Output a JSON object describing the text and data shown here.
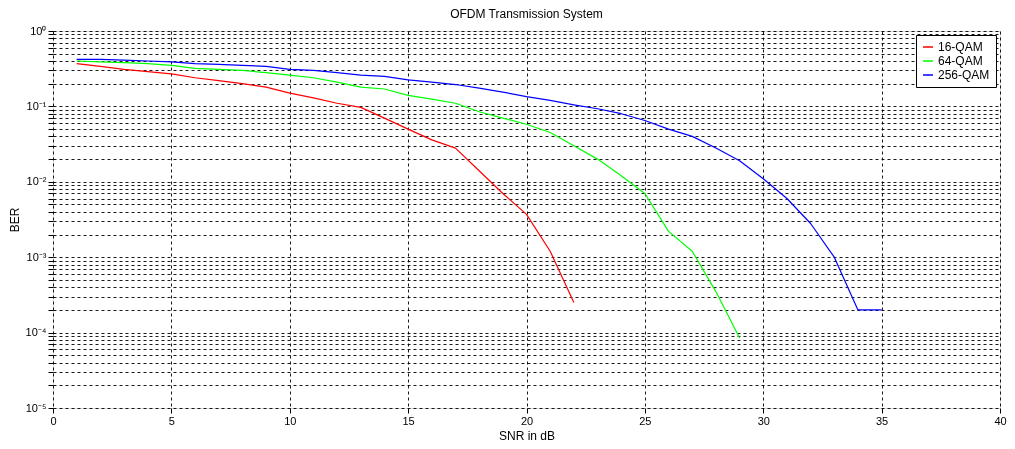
{
  "chart_data": {
    "type": "line",
    "title": "OFDM Transmission System",
    "xlabel": "SNR in dB",
    "ylabel": "BER",
    "log": "y",
    "grid": true,
    "legend": "top right",
    "marker": "none",
    "line_style": "solid",
    "xlim": [
      0,
      40
    ],
    "xticks": [
      0,
      5,
      10,
      15,
      20,
      25,
      30,
      35,
      40
    ],
    "ylim": [
      1e-05,
      1
    ],
    "yticks": [
      {
        "value": 1e-05,
        "label": "10⁻⁵"
      },
      {
        "value": 2e-05,
        "label": null
      },
      {
        "value": 3e-05,
        "label": null
      },
      {
        "value": 4e-05,
        "label": null
      },
      {
        "value": 5e-05,
        "label": null
      },
      {
        "value": 6e-05,
        "label": null
      },
      {
        "value": 7e-05,
        "label": null
      },
      {
        "value": 8e-05,
        "label": null
      },
      {
        "value": 9e-05,
        "label": null
      },
      {
        "value": 0.0001,
        "label": "10⁻⁴"
      },
      {
        "value": 0.0002,
        "label": null
      },
      {
        "value": 0.0003,
        "label": null
      },
      {
        "value": 0.0004,
        "label": null
      },
      {
        "value": 0.0005,
        "label": null
      },
      {
        "value": 0.0006,
        "label": null
      },
      {
        "value": 0.0007,
        "label": null
      },
      {
        "value": 0.0008,
        "label": null
      },
      {
        "value": 0.0009,
        "label": null
      },
      {
        "value": 0.001,
        "label": "10⁻³"
      },
      {
        "value": 0.002,
        "label": null
      },
      {
        "value": 0.003,
        "label": null
      },
      {
        "value": 0.004,
        "label": null
      },
      {
        "value": 0.005,
        "label": null
      },
      {
        "value": 0.006,
        "label": null
      },
      {
        "value": 0.007,
        "label": null
      },
      {
        "value": 0.008,
        "label": null
      },
      {
        "value": 0.009,
        "label": null
      },
      {
        "value": 0.01,
        "label": "10⁻²"
      },
      {
        "value": 0.02,
        "label": null
      },
      {
        "value": 0.03,
        "label": null
      },
      {
        "value": 0.04,
        "label": null
      },
      {
        "value": 0.05,
        "label": null
      },
      {
        "value": 0.06,
        "label": null
      },
      {
        "value": 0.07,
        "label": null
      },
      {
        "value": 0.08,
        "label": null
      },
      {
        "value": 0.09,
        "label": null
      },
      {
        "value": 0.1,
        "label": "10⁻¹"
      },
      {
        "value": 0.2,
        "label": null
      },
      {
        "value": 0.3,
        "label": null
      },
      {
        "value": 0.4,
        "label": null
      },
      {
        "value": 0.5,
        "label": null
      },
      {
        "value": 0.6,
        "label": null
      },
      {
        "value": 0.7,
        "label": null
      },
      {
        "value": 0.8,
        "label": null
      },
      {
        "value": 0.9,
        "label": null
      },
      {
        "value": 1,
        "label": "10⁰"
      }
    ],
    "series": [
      {
        "name": "16-QAM",
        "color": "#ff0000",
        "x": [
          1,
          2,
          3,
          4,
          5,
          6,
          7,
          8,
          9,
          10,
          11,
          12,
          13,
          14,
          15,
          16,
          17,
          18,
          19,
          20,
          21,
          22
        ],
        "values": [
          0.37,
          0.34,
          0.31,
          0.29,
          0.27,
          0.24,
          0.22,
          0.2,
          0.18,
          0.15,
          0.13,
          0.11,
          0.097,
          0.07,
          0.05,
          0.036,
          0.028,
          0.014,
          0.007,
          0.0037,
          0.0012,
          0.00025
        ]
      },
      {
        "name": "64-QAM",
        "color": "#00ff00",
        "x": [
          1,
          2,
          3,
          4,
          5,
          6,
          7,
          8,
          9,
          10,
          11,
          12,
          13,
          14,
          15,
          16,
          17,
          18,
          19,
          20,
          21,
          22,
          23,
          24,
          25,
          26,
          27,
          28,
          29
        ],
        "values": [
          0.4,
          0.39,
          0.38,
          0.37,
          0.35,
          0.32,
          0.31,
          0.3,
          0.28,
          0.26,
          0.24,
          0.21,
          0.18,
          0.17,
          0.14,
          0.125,
          0.11,
          0.085,
          0.07,
          0.058,
          0.045,
          0.03,
          0.02,
          0.012,
          0.007,
          0.0022,
          0.0012,
          0.00035,
          8.5e-05
        ]
      },
      {
        "name": "256-QAM",
        "color": "#0000ff",
        "x": [
          1,
          2,
          3,
          4,
          5,
          6,
          7,
          8,
          9,
          10,
          11,
          12,
          13,
          14,
          15,
          16,
          17,
          18,
          19,
          20,
          21,
          22,
          23,
          24,
          25,
          26,
          27,
          28,
          29,
          30,
          31,
          32,
          33,
          34,
          35
        ],
        "values": [
          0.42,
          0.42,
          0.41,
          0.4,
          0.39,
          0.37,
          0.36,
          0.35,
          0.34,
          0.31,
          0.3,
          0.28,
          0.26,
          0.25,
          0.225,
          0.21,
          0.195,
          0.175,
          0.155,
          0.135,
          0.12,
          0.105,
          0.093,
          0.08,
          0.065,
          0.05,
          0.04,
          0.028,
          0.019,
          0.011,
          0.006,
          0.0028,
          0.001,
          0.0002,
          0.0002
        ]
      }
    ]
  }
}
